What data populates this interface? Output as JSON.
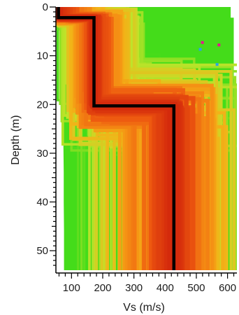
{
  "chart_data": {
    "type": "line",
    "title": "",
    "xlabel": "Vs (m/s)",
    "ylabel": "Depth (m)",
    "xlim": [
      50,
      630
    ],
    "ylim": [
      54,
      0
    ],
    "y_inverted": true,
    "grid": false,
    "xticks": [
      100,
      200,
      300,
      400,
      500,
      600
    ],
    "yticks": [
      0,
      10,
      20,
      30,
      40,
      50
    ],
    "colors": {
      "best_profile": "#000000",
      "misfit_low": "#d42a0c",
      "misfit_mid": "#f2b318",
      "misfit_high": "#44dc1a",
      "outlier": "#e8168e"
    },
    "best_profile": {
      "name": "",
      "vs": [
        58,
        58,
        172,
        172,
        428,
        428
      ],
      "depth": [
        0,
        2.2,
        2.2,
        20.3,
        20.3,
        54
      ]
    },
    "ensemble_envelope": {
      "depth": [
        0,
        2.2,
        2.2,
        8,
        12,
        18,
        20.3,
        20.3,
        24,
        28,
        34,
        40,
        46,
        54
      ],
      "vs_min": [
        60,
        60,
        62,
        64,
        66,
        68,
        70,
        70,
        72,
        74,
        75,
        75,
        76,
        76
      ],
      "vs_max": [
        610,
        610,
        620,
        620,
        620,
        620,
        620,
        620,
        625,
        625,
        620,
        615,
        612,
        610
      ]
    }
  }
}
